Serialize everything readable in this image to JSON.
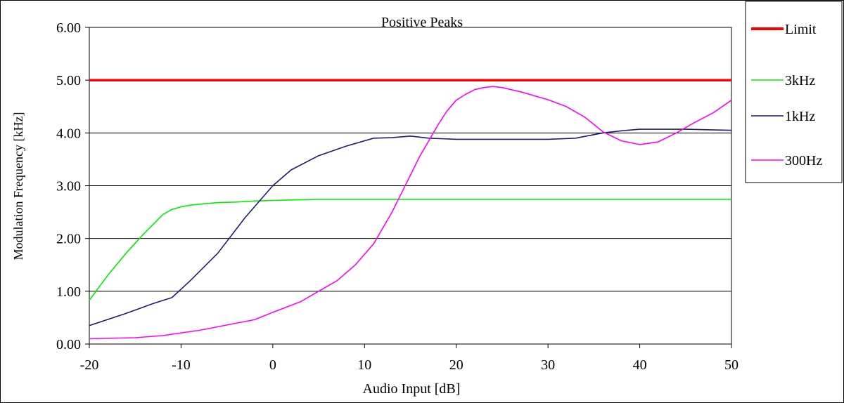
{
  "chart_data": {
    "type": "line",
    "title": "Positive Peaks",
    "xlabel": "Audio Input [dB]",
    "ylabel": "Modulation Frequency [kHz]",
    "xlim": [
      -20,
      50
    ],
    "ylim": [
      0,
      6
    ],
    "x_ticks": [
      "-20",
      "-10",
      "0",
      "10",
      "20",
      "30",
      "40",
      "50"
    ],
    "y_ticks": [
      "0.00",
      "1.00",
      "2.00",
      "3.00",
      "4.00",
      "5.00",
      "6.00"
    ],
    "grid": "horizontal",
    "legend_position": "right",
    "series": [
      {
        "name": "Limit",
        "color": "#ff0000",
        "x": [
          -20,
          50
        ],
        "y": [
          5.0,
          5.0
        ]
      },
      {
        "name": "3kHz",
        "color": "#00ee00",
        "x": [
          -20,
          -18,
          -16,
          -14,
          -12,
          -11,
          -10,
          -9,
          -8,
          -6,
          -4,
          -2,
          0,
          2,
          5,
          10,
          20,
          30,
          40,
          50
        ],
        "y": [
          0.83,
          1.3,
          1.72,
          2.1,
          2.45,
          2.55,
          2.6,
          2.63,
          2.65,
          2.68,
          2.69,
          2.71,
          2.72,
          2.73,
          2.74,
          2.74,
          2.74,
          2.74,
          2.74,
          2.74
        ]
      },
      {
        "name": "1kHz",
        "color": "#1a1a7a",
        "x": [
          -20,
          -16,
          -13,
          -11,
          -9,
          -6,
          -3,
          0,
          2,
          5,
          8,
          11,
          13,
          15,
          17,
          20,
          25,
          30,
          33,
          36,
          38,
          40,
          43,
          45,
          50
        ],
        "y": [
          0.35,
          0.58,
          0.77,
          0.88,
          1.2,
          1.72,
          2.4,
          3.0,
          3.3,
          3.57,
          3.75,
          3.9,
          3.91,
          3.94,
          3.9,
          3.88,
          3.88,
          3.88,
          3.9,
          4.0,
          4.04,
          4.07,
          4.07,
          4.07,
          4.05
        ]
      },
      {
        "name": "300Hz",
        "color": "#ff00ff",
        "x": [
          -20,
          -15,
          -12,
          -8,
          -5,
          -2,
          0,
          3,
          5,
          7,
          9,
          11,
          12,
          13,
          14,
          15,
          16,
          17,
          18,
          19,
          20,
          21,
          22,
          23,
          24,
          25,
          27,
          30,
          32,
          34,
          36,
          38,
          40,
          42,
          44,
          46,
          48,
          50
        ],
        "y": [
          0.1,
          0.12,
          0.16,
          0.26,
          0.36,
          0.46,
          0.6,
          0.8,
          1.0,
          1.2,
          1.5,
          1.9,
          2.2,
          2.5,
          2.85,
          3.2,
          3.55,
          3.85,
          4.15,
          4.42,
          4.62,
          4.73,
          4.82,
          4.86,
          4.88,
          4.86,
          4.78,
          4.63,
          4.5,
          4.3,
          4.02,
          3.85,
          3.78,
          3.83,
          4.0,
          4.2,
          4.38,
          4.62
        ]
      }
    ]
  }
}
